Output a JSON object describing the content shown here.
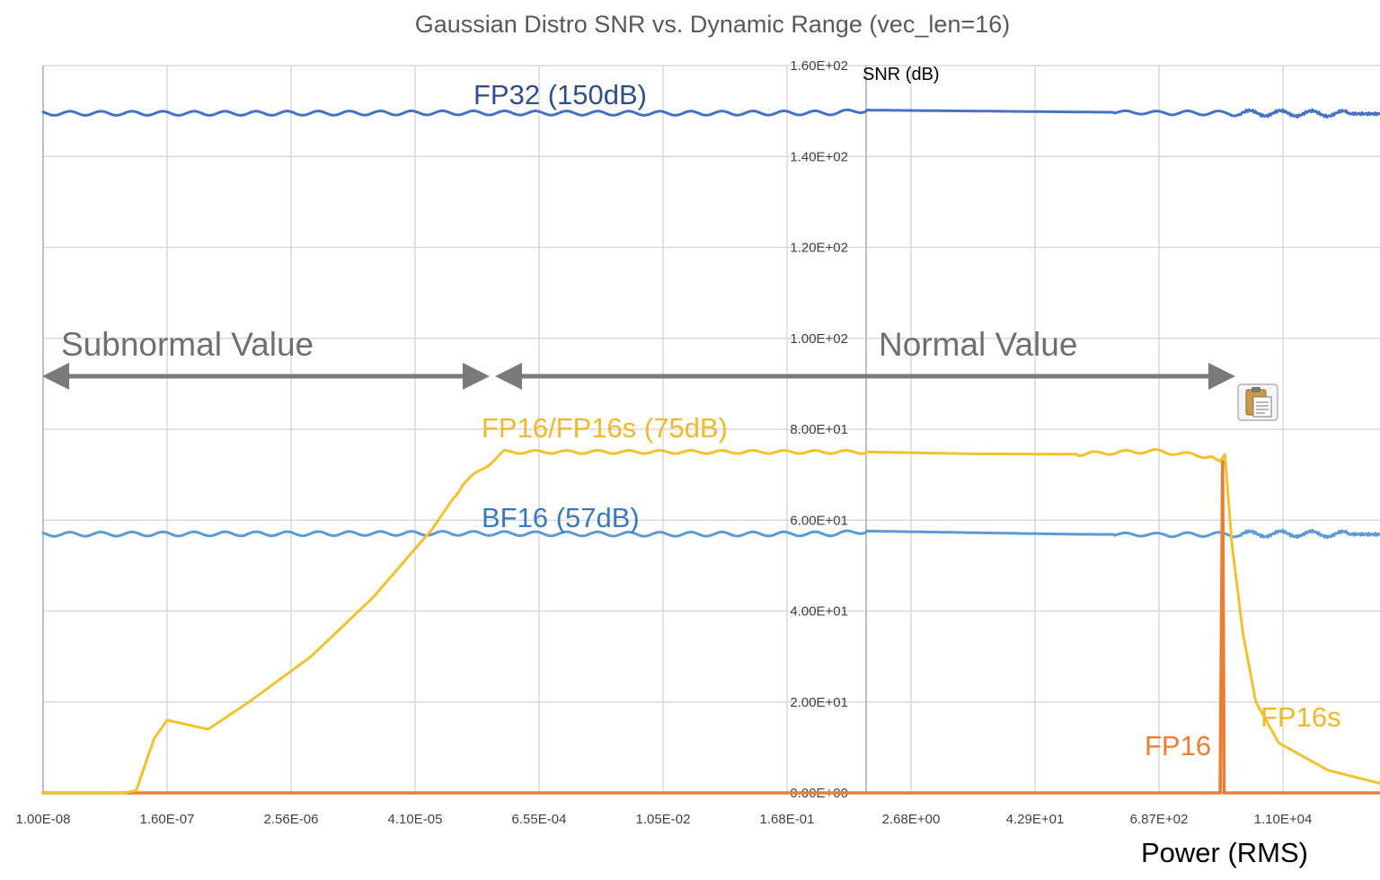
{
  "chart_data": {
    "type": "line",
    "title": "Gaussian Distro SNR vs. Dynamic Range (vec_len=16)",
    "xlabel": "Power (RMS)",
    "ylabel": "SNR (dB)",
    "x_scale": "log",
    "xlim": [
      1e-08,
      400000.0
    ],
    "ylim": [
      0,
      160
    ],
    "y_ticks": [
      {
        "value": 0,
        "label": "0.00E+00"
      },
      {
        "value": 20,
        "label": "2.00E+01"
      },
      {
        "value": 40,
        "label": "4.00E+01"
      },
      {
        "value": 60,
        "label": "6.00E+01"
      },
      {
        "value": 80,
        "label": "8.00E+01"
      },
      {
        "value": 100,
        "label": "1.00E+02"
      },
      {
        "value": 120,
        "label": "1.20E+02"
      },
      {
        "value": 140,
        "label": "1.40E+02"
      },
      {
        "value": 160,
        "label": "1.60E+02"
      }
    ],
    "x_ticks": [
      {
        "value": 1e-08,
        "label": "1.00E-08"
      },
      {
        "value": 1.6e-07,
        "label": "1.60E-07"
      },
      {
        "value": 2.56e-06,
        "label": "2.56E-06"
      },
      {
        "value": 4.1e-05,
        "label": "4.10E-05"
      },
      {
        "value": 0.000655,
        "label": "6.55E-04"
      },
      {
        "value": 0.0105,
        "label": "1.05E-02"
      },
      {
        "value": 0.168,
        "label": "1.68E-01"
      },
      {
        "value": 2.68,
        "label": "2.68E+00"
      },
      {
        "value": 42.9,
        "label": "4.29E+01"
      },
      {
        "value": 687,
        "label": "6.87E+02"
      },
      {
        "value": 11000,
        "label": "1.10E+04"
      }
    ],
    "grid": true,
    "series": [
      {
        "name": "FP32",
        "label": "FP32 (150dB)",
        "color": "#4472c4",
        "label_color": "#2f4f8a",
        "x": [
          1e-08,
          1e-06,
          0.0001,
          0.01,
          0.5,
          1,
          100,
          1000,
          10000,
          300000
        ],
        "y": [
          149.5,
          149.5,
          149.6,
          149.5,
          149.6,
          150.2,
          149.8,
          149.6,
          149.5,
          149.3
        ]
      },
      {
        "name": "BF16",
        "label": "BF16 (57dB)",
        "color": "#5b9bd5",
        "label_color": "#3a78c0",
        "x": [
          1e-08,
          1e-06,
          0.0001,
          0.01,
          0.5,
          1,
          100,
          1000,
          10000,
          300000
        ],
        "y": [
          56.9,
          57.0,
          57.1,
          56.9,
          57.0,
          57.6,
          56.9,
          56.8,
          57.0,
          56.8
        ]
      },
      {
        "name": "FP16s",
        "label": "FP16/FP16s (75dB)",
        "end_label": "FP16s",
        "color": "#f2c12e",
        "label_color": "#f0b82a",
        "x": [
          1e-08,
          3e-08,
          6e-08,
          8e-08,
          1.2e-07,
          1.6e-07,
          4e-07,
          1e-06,
          4e-06,
          1.6e-05,
          6e-05,
          0.00012,
          0.0003,
          0.001,
          0.01,
          0.5,
          1,
          10,
          100,
          600,
          2200,
          2700,
          3000,
          3500,
          4500,
          6000,
          10000,
          30000,
          100000,
          300000
        ],
        "y": [
          0,
          0,
          0,
          0.5,
          12,
          16,
          14,
          20,
          30,
          43,
          58,
          68,
          75,
          75,
          75,
          75,
          75,
          74.6,
          74.5,
          75.2,
          74,
          73,
          74.5,
          55,
          35,
          20,
          11,
          5,
          2,
          1
        ]
      },
      {
        "name": "FP16",
        "end_label": "FP16",
        "color": "#ed7d31",
        "label_color": "#ed7d31",
        "x": [
          1e-08,
          1000,
          2700,
          2850,
          2950,
          300000
        ],
        "y": [
          0,
          0,
          0,
          73,
          0,
          0
        ]
      }
    ],
    "annotations": [
      {
        "text": "Subnormal Value",
        "type": "bracket",
        "x_from": 1e-08,
        "x_to": 0.0002
      },
      {
        "text": "Normal Value",
        "type": "bracket",
        "x_from": 0.0003,
        "x_to": 3000
      }
    ]
  }
}
